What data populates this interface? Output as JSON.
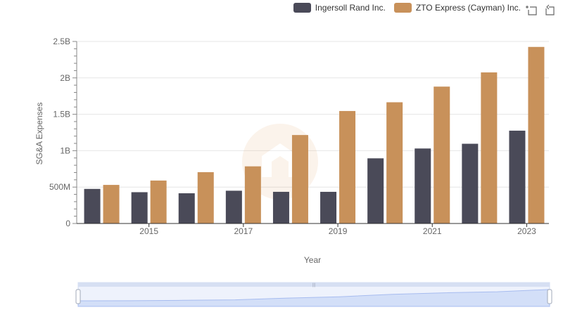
{
  "legend": {
    "series_a": "Ingersoll Rand Inc.",
    "series_b": "ZTO Express (Cayman) Inc."
  },
  "toolbox": {
    "zoom_icon": "zoom-select-icon",
    "restore_icon": "restore-icon"
  },
  "colors": {
    "series_a": "#4a4a58",
    "series_b": "#c8915a",
    "grid": "#e6e6e6",
    "slider_fill": "#dfe8fb",
    "slider_line": "#a9bef0"
  },
  "chart_data": {
    "type": "bar",
    "x": [
      2014,
      2015,
      2016,
      2017,
      2018,
      2019,
      2020,
      2021,
      2022,
      2023
    ],
    "xlabel": "Year",
    "ylabel": "SG&A Expenses",
    "ylim": [
      0,
      2500000000
    ],
    "yticks": [
      0,
      500000000,
      1000000000,
      1500000000,
      2000000000,
      2500000000
    ],
    "ytick_labels": [
      "0",
      "500M",
      "1B",
      "1.5B",
      "2B",
      "2.5B"
    ],
    "xtick_labels": [
      "2015",
      "2017",
      "2019",
      "2021",
      "2023"
    ],
    "xtick_values": [
      2015,
      2017,
      2019,
      2021,
      2023
    ],
    "grid": true,
    "legend_position": "top-right",
    "series": [
      {
        "name": "Ingersoll Rand Inc.",
        "values": [
          475000000,
          430000000,
          415000000,
          450000000,
          435000000,
          435000000,
          895000000,
          1030000000,
          1095000000,
          1275000000
        ]
      },
      {
        "name": "ZTO Express (Cayman) Inc.",
        "values": [
          530000000,
          590000000,
          705000000,
          785000000,
          1215000000,
          1545000000,
          1665000000,
          1880000000,
          2075000000,
          2425000000
        ]
      }
    ]
  }
}
